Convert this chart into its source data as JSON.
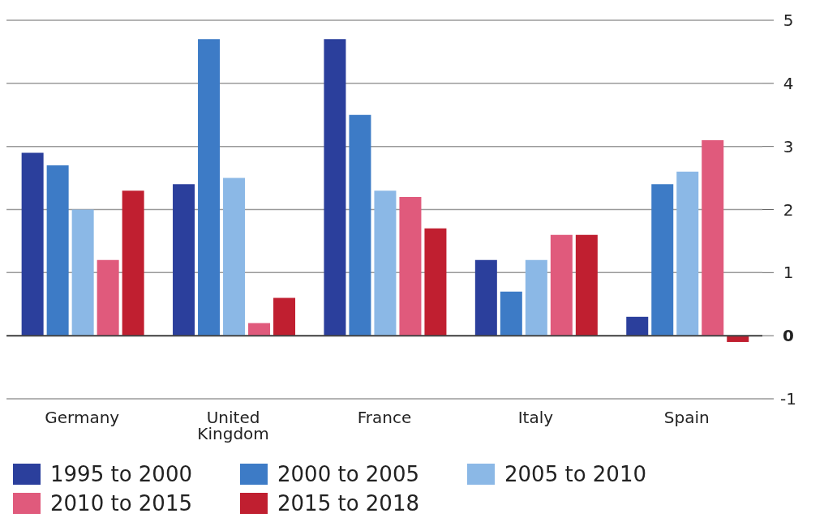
{
  "chart_data": {
    "type": "bar",
    "categories": [
      "Germany",
      "United Kingdom",
      "France",
      "Italy",
      "Spain"
    ],
    "series": [
      {
        "name": "1995 to 2000",
        "color": "#2b3f9c",
        "values": [
          2.9,
          2.4,
          4.7,
          1.2,
          0.3
        ]
      },
      {
        "name": "2000 to 2005",
        "color": "#3d7bc6",
        "values": [
          2.7,
          4.7,
          3.5,
          0.7,
          2.4
        ]
      },
      {
        "name": "2005 to 2010",
        "color": "#8bb8e6",
        "values": [
          2.0,
          2.5,
          2.3,
          1.2,
          2.6
        ]
      },
      {
        "name": "2010 to 2015",
        "color": "#e05a7c",
        "values": [
          1.2,
          0.2,
          2.2,
          1.6,
          3.1
        ]
      },
      {
        "name": "2015 to 2018",
        "color": "#c01f30",
        "values": [
          2.3,
          0.6,
          1.7,
          1.6,
          -0.1
        ]
      }
    ],
    "ylim": [
      -1,
      5
    ],
    "yticks": [
      -1,
      0,
      1,
      2,
      3,
      4,
      5
    ],
    "grid": "y",
    "legend": "bottom"
  }
}
